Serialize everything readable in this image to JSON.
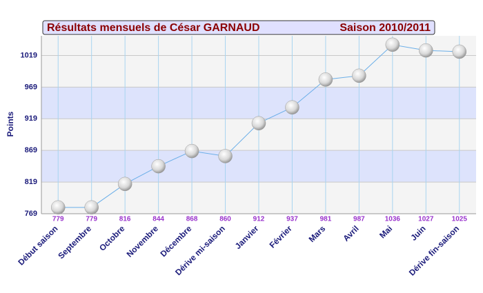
{
  "chart_data": {
    "type": "line",
    "title": "Résultats mensuels de  César  GARNAUD",
    "subtitle": "Saison 2010/2011",
    "y_label": "Points",
    "categories": [
      "Début saison",
      "Septembre",
      "Octobre",
      "Novembre",
      "Décembre",
      "Dérive mi-saison",
      "Janvier",
      "Février",
      "Mars",
      "Avril",
      "Mai",
      "Juin",
      "Dérive fin-saison"
    ],
    "values": [
      779,
      779,
      816,
      844,
      868,
      860,
      912,
      937,
      981,
      987,
      1036,
      1027,
      1025
    ],
    "color": "#6aaee8",
    "ylim": [
      769,
      1050
    ],
    "yticks": [
      769,
      819,
      869,
      919,
      969,
      1019
    ],
    "grid": true
  }
}
